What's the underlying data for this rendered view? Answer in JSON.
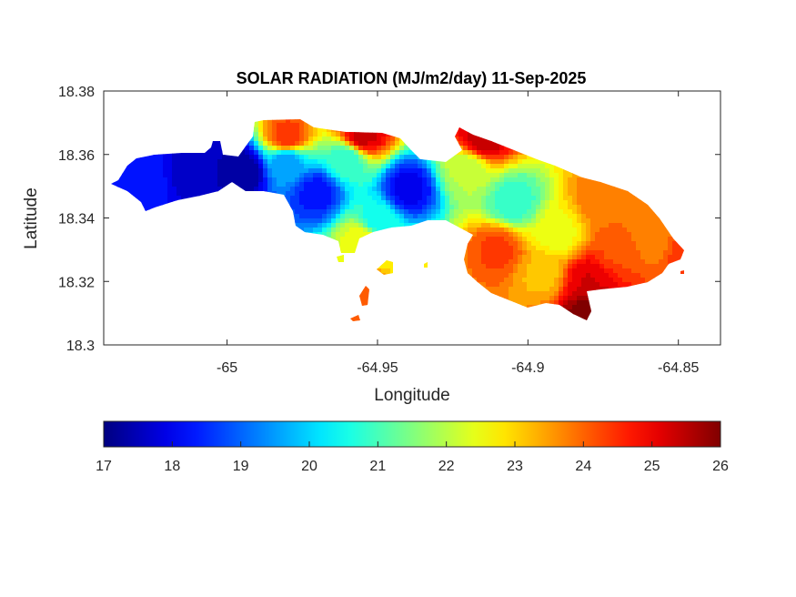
{
  "chart_data": {
    "type": "heatmap",
    "title": "SOLAR RADIATION (MJ/m2/day) 11-Sep-2025",
    "xlabel": "Longitude",
    "ylabel": "Latitude",
    "xlim": [
      -65.041,
      -64.836
    ],
    "ylim": [
      18.3,
      18.38
    ],
    "x_ticks": [
      "-65",
      "-64.95",
      "-64.9",
      "-64.85"
    ],
    "y_ticks": [
      "18.38",
      "18.36",
      "18.34",
      "18.32",
      "18.3"
    ],
    "colorbar": {
      "colormap": "jet",
      "range": [
        17,
        26
      ],
      "ticks": [
        "17",
        "18",
        "19",
        "20",
        "21",
        "22",
        "23",
        "24",
        "25",
        "26"
      ]
    },
    "grid": false,
    "field_samples": [
      {
        "lon": -65.03,
        "lat": 18.352,
        "value": 18.4
      },
      {
        "lon": -65.01,
        "lat": 18.355,
        "value": 17.6
      },
      {
        "lon": -64.995,
        "lat": 18.355,
        "value": 17.2
      },
      {
        "lon": -64.98,
        "lat": 18.358,
        "value": 19.5
      },
      {
        "lon": -64.96,
        "lat": 18.358,
        "value": 20.8
      },
      {
        "lon": -64.98,
        "lat": 18.365,
        "value": 24.5
      },
      {
        "lon": -64.955,
        "lat": 18.366,
        "value": 25.3
      },
      {
        "lon": -64.97,
        "lat": 18.348,
        "value": 18.3
      },
      {
        "lon": -64.94,
        "lat": 18.349,
        "value": 18.0
      },
      {
        "lon": -64.95,
        "lat": 18.339,
        "value": 20.5
      },
      {
        "lon": -64.955,
        "lat": 18.333,
        "value": 22.6
      },
      {
        "lon": -64.92,
        "lat": 18.355,
        "value": 22.0
      },
      {
        "lon": -64.915,
        "lat": 18.365,
        "value": 25.4
      },
      {
        "lon": -64.905,
        "lat": 18.345,
        "value": 20.8
      },
      {
        "lon": -64.89,
        "lat": 18.335,
        "value": 22.5
      },
      {
        "lon": -64.875,
        "lat": 18.345,
        "value": 23.8
      },
      {
        "lon": -64.87,
        "lat": 18.33,
        "value": 24.2
      },
      {
        "lon": -64.895,
        "lat": 18.322,
        "value": 23.2
      },
      {
        "lon": -64.88,
        "lat": 18.32,
        "value": 25.2
      },
      {
        "lon": -64.88,
        "lat": 18.31,
        "value": 26.0
      },
      {
        "lon": -64.86,
        "lat": 18.335,
        "value": 23.6
      },
      {
        "lon": -64.845,
        "lat": 18.33,
        "value": 24.5
      },
      {
        "lon": -64.91,
        "lat": 18.33,
        "value": 24.3
      },
      {
        "lon": -64.94,
        "lat": 18.322,
        "value": 22.8
      },
      {
        "lon": -64.95,
        "lat": 18.315,
        "value": 24.2
      }
    ]
  }
}
